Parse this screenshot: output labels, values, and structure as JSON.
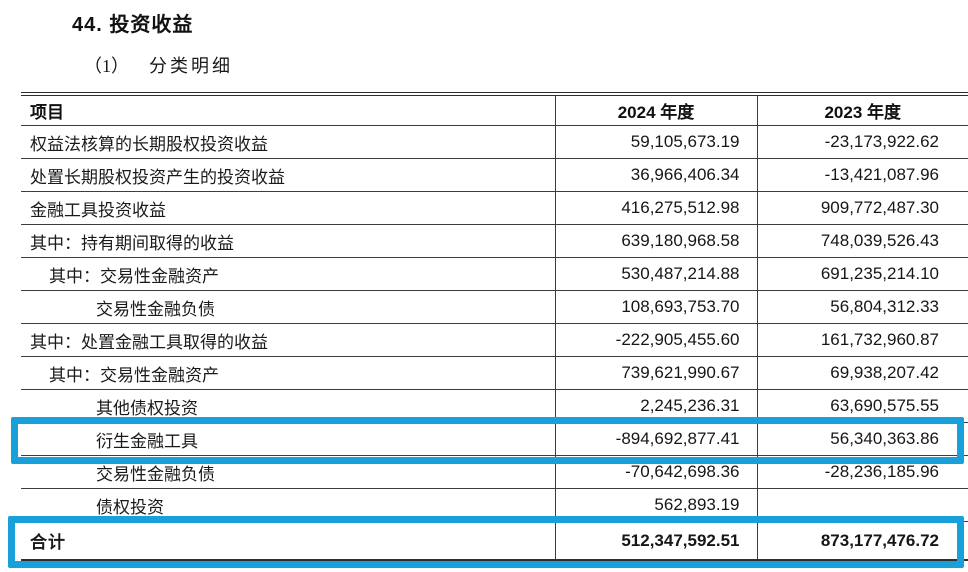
{
  "page": {
    "title": "44. 投资收益",
    "subtitle_marker": "（1）",
    "subtitle_text": "分类明细"
  },
  "annotation": {
    "highlight_color": "#18A0DA"
  },
  "table": {
    "headers": [
      "项目",
      "2024 年度",
      "2023 年度"
    ],
    "rows": [
      {
        "label": "权益法核算的长期股权投资收益",
        "indent": 0,
        "y2024": "59,105,673.19",
        "y2023": "-23,173,922.62",
        "total": false,
        "highlight": false
      },
      {
        "label": "处置长期股权投资产生的投资收益",
        "indent": 0,
        "y2024": "36,966,406.34",
        "y2023": "-13,421,087.96",
        "total": false,
        "highlight": false
      },
      {
        "label": "金融工具投资收益",
        "indent": 0,
        "y2024": "416,275,512.98",
        "y2023": "909,772,487.30",
        "total": false,
        "highlight": false
      },
      {
        "label": "其中：持有期间取得的收益",
        "indent": 0,
        "y2024": "639,180,968.58",
        "y2023": "748,039,526.43",
        "total": false,
        "highlight": false
      },
      {
        "label": "其中：交易性金融资产",
        "indent": 1,
        "y2024": "530,487,214.88",
        "y2023": "691,235,214.10",
        "total": false,
        "highlight": false
      },
      {
        "label": "交易性金融负债",
        "indent": 2,
        "y2024": "108,693,753.70",
        "y2023": "56,804,312.33",
        "total": false,
        "highlight": false
      },
      {
        "label": "其中：处置金融工具取得的收益",
        "indent": 0,
        "y2024": "-222,905,455.60",
        "y2023": "161,732,960.87",
        "total": false,
        "highlight": false
      },
      {
        "label": "其中：交易性金融资产",
        "indent": 1,
        "y2024": "739,621,990.67",
        "y2023": "69,938,207.42",
        "total": false,
        "highlight": false
      },
      {
        "label": "其他债权投资",
        "indent": 2,
        "y2024": "2,245,236.31",
        "y2023": "63,690,575.55",
        "total": false,
        "highlight": false
      },
      {
        "label": "衍生金融工具",
        "indent": 2,
        "y2024": "-894,692,877.41",
        "y2023": "56,340,363.86",
        "total": false,
        "highlight": true
      },
      {
        "label": "交易性金融负债",
        "indent": 2,
        "y2024": "-70,642,698.36",
        "y2023": "-28,236,185.96",
        "total": false,
        "highlight": false
      },
      {
        "label": "债权投资",
        "indent": 2,
        "y2024": "562,893.19",
        "y2023": "",
        "total": false,
        "highlight": false
      },
      {
        "label": "合计",
        "indent": 0,
        "y2024": "512,347,592.51",
        "y2023": "873,177,476.72",
        "total": true,
        "highlight": true
      }
    ]
  }
}
